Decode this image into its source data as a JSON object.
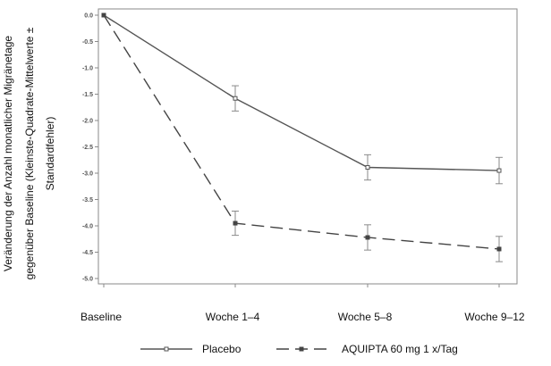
{
  "chart_data": {
    "type": "line",
    "categories": [
      "Baseline",
      "Woche 1–4",
      "Woche 5–8",
      "Woche 9–12"
    ],
    "ylabel_lines": [
      "Veränderung der Anzahl monatlicher Migränetage",
      "gegenüber Baseline (Kleinste-Quadrate-Mittelwerte ±",
      "Standardfehler)"
    ],
    "ylim": [
      -5.0,
      0.0
    ],
    "yticks": [
      "0.0",
      "-0.5",
      "-1.0",
      "-1.5",
      "-2.0",
      "-2.5",
      "-3.0",
      "-3.5",
      "-4.0",
      "-4.5",
      "-5.0"
    ],
    "grid": false,
    "legend_position": "bottom",
    "series": [
      {
        "name": "Placebo",
        "values": [
          0.0,
          -1.58,
          -2.89,
          -2.95
        ],
        "error": [
          0.0,
          0.24,
          0.24,
          0.25
        ],
        "line_style": "solid",
        "marker": "open-square",
        "color": "#555555"
      },
      {
        "name": "AQUIPTA 60 mg 1 x/Tag",
        "values": [
          0.0,
          -3.95,
          -4.22,
          -4.44
        ],
        "error": [
          0.0,
          0.23,
          0.24,
          0.24
        ],
        "line_style": "dashed",
        "marker": "filled-square",
        "color": "#444444"
      }
    ]
  }
}
